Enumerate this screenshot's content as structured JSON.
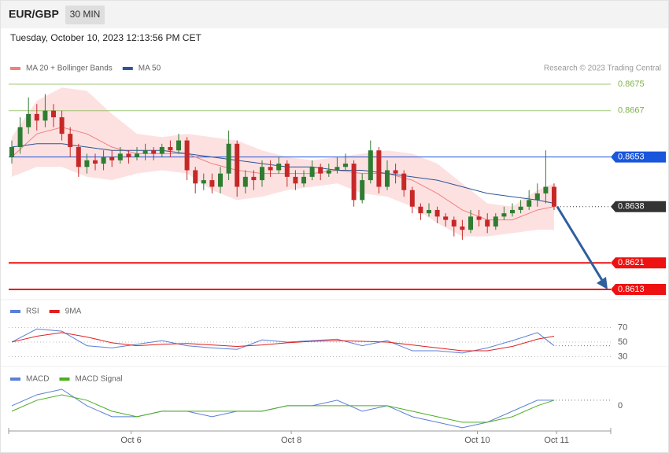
{
  "header": {
    "symbol": "EUR/GBP",
    "interval": "30 MIN",
    "timestamp": "Tuesday, October 10, 2023 12:13:56 PM CET",
    "attribution": "Research © 2023 Trading Central"
  },
  "chart_data": [
    {
      "type": "candlestick",
      "ylim": [
        0.861,
        0.8678
      ],
      "up_color": "#2e7d32",
      "down_color": "#c62828",
      "ohlc": [
        [
          0.8653,
          0.8658,
          0.8651,
          0.8656
        ],
        [
          0.8656,
          0.8665,
          0.8654,
          0.8662
        ],
        [
          0.8662,
          0.8671,
          0.866,
          0.8666
        ],
        [
          0.8666,
          0.8669,
          0.8661,
          0.8664
        ],
        [
          0.8664,
          0.8672,
          0.8662,
          0.8667
        ],
        [
          0.8667,
          0.8669,
          0.8662,
          0.8665
        ],
        [
          0.8665,
          0.8667,
          0.8658,
          0.866
        ],
        [
          0.866,
          0.8662,
          0.8653,
          0.8656
        ],
        [
          0.8656,
          0.8657,
          0.8647,
          0.865
        ],
        [
          0.865,
          0.8654,
          0.8648,
          0.8652
        ],
        [
          0.8652,
          0.8654,
          0.8649,
          0.8651
        ],
        [
          0.8651,
          0.8655,
          0.8649,
          0.8653
        ],
        [
          0.8653,
          0.8655,
          0.865,
          0.8652
        ],
        [
          0.8652,
          0.8656,
          0.8651,
          0.8654
        ],
        [
          0.8654,
          0.8655,
          0.8651,
          0.8653
        ],
        [
          0.8653,
          0.8656,
          0.8652,
          0.8654
        ],
        [
          0.8654,
          0.8657,
          0.8652,
          0.8655
        ],
        [
          0.8655,
          0.8656,
          0.8652,
          0.8654
        ],
        [
          0.8654,
          0.8657,
          0.8653,
          0.8656
        ],
        [
          0.8656,
          0.8658,
          0.8653,
          0.8655
        ],
        [
          0.8655,
          0.866,
          0.8654,
          0.8658
        ],
        [
          0.8658,
          0.8659,
          0.8646,
          0.8649
        ],
        [
          0.8649,
          0.865,
          0.8642,
          0.8645
        ],
        [
          0.8645,
          0.8648,
          0.8643,
          0.8646
        ],
        [
          0.8646,
          0.8648,
          0.8642,
          0.8644
        ],
        [
          0.8644,
          0.865,
          0.8642,
          0.8648
        ],
        [
          0.8648,
          0.8661,
          0.8646,
          0.8657
        ],
        [
          0.8657,
          0.8658,
          0.8641,
          0.8644
        ],
        [
          0.8644,
          0.8649,
          0.8642,
          0.8647
        ],
        [
          0.8647,
          0.8649,
          0.8643,
          0.8646
        ],
        [
          0.8646,
          0.8652,
          0.8644,
          0.865
        ],
        [
          0.865,
          0.8652,
          0.8647,
          0.8649
        ],
        [
          0.8649,
          0.8653,
          0.8648,
          0.8651
        ],
        [
          0.8651,
          0.8652,
          0.8644,
          0.8647
        ],
        [
          0.8647,
          0.8649,
          0.8643,
          0.8645
        ],
        [
          0.8645,
          0.8649,
          0.8644,
          0.8647
        ],
        [
          0.8647,
          0.8652,
          0.8646,
          0.865
        ],
        [
          0.865,
          0.8651,
          0.8646,
          0.8648
        ],
        [
          0.8648,
          0.8651,
          0.8647,
          0.8649
        ],
        [
          0.8649,
          0.8653,
          0.8648,
          0.865
        ],
        [
          0.865,
          0.8654,
          0.8649,
          0.8651
        ],
        [
          0.8651,
          0.8652,
          0.8638,
          0.864
        ],
        [
          0.864,
          0.8648,
          0.8639,
          0.8646
        ],
        [
          0.8646,
          0.8658,
          0.8645,
          0.8655
        ],
        [
          0.8655,
          0.8656,
          0.8642,
          0.8644
        ],
        [
          0.8644,
          0.8652,
          0.8643,
          0.8649
        ],
        [
          0.8649,
          0.8651,
          0.8645,
          0.8648
        ],
        [
          0.8648,
          0.8649,
          0.8641,
          0.8643
        ],
        [
          0.8643,
          0.8644,
          0.8636,
          0.8638
        ],
        [
          0.8638,
          0.8639,
          0.8634,
          0.8636
        ],
        [
          0.8636,
          0.8639,
          0.8635,
          0.8637
        ],
        [
          0.8637,
          0.8638,
          0.8633,
          0.8635
        ],
        [
          0.8635,
          0.8636,
          0.8632,
          0.8634
        ],
        [
          0.8634,
          0.8635,
          0.8629,
          0.8632
        ],
        [
          0.8632,
          0.8634,
          0.8628,
          0.8631
        ],
        [
          0.8631,
          0.8637,
          0.863,
          0.8635
        ],
        [
          0.8635,
          0.8637,
          0.8632,
          0.8634
        ],
        [
          0.8634,
          0.8636,
          0.863,
          0.8632
        ],
        [
          0.8632,
          0.8636,
          0.8631,
          0.8635
        ],
        [
          0.8635,
          0.8638,
          0.8634,
          0.8636
        ],
        [
          0.8636,
          0.8639,
          0.8635,
          0.8637
        ],
        [
          0.8637,
          0.864,
          0.8636,
          0.8638
        ],
        [
          0.8638,
          0.8643,
          0.8637,
          0.864
        ],
        [
          0.864,
          0.8645,
          0.8638,
          0.8642
        ],
        [
          0.8642,
          0.8655,
          0.8639,
          0.8644
        ],
        [
          0.8644,
          0.8645,
          0.8637,
          0.8638
        ]
      ],
      "x": [
        0,
        3,
        6,
        9,
        12,
        15,
        18,
        21,
        24,
        27,
        30,
        33,
        36,
        39,
        42,
        45,
        48,
        51,
        54,
        57,
        60,
        63,
        65
      ],
      "series": [
        {
          "name": "MA 20 + Bollinger Bands",
          "color": "#f08080",
          "band_color": "#fcd9d9",
          "values": [
            0.8653,
            0.866,
            0.8662,
            0.866,
            0.8656,
            0.8654,
            0.8654,
            0.8654,
            0.8651,
            0.8649,
            0.8648,
            0.8648,
            0.8648,
            0.8649,
            0.8648,
            0.8648,
            0.8646,
            0.8642,
            0.8637,
            0.8634,
            0.8634,
            0.8637,
            0.8638
          ],
          "upper": [
            0.8659,
            0.867,
            0.8674,
            0.8673,
            0.8666,
            0.866,
            0.8659,
            0.866,
            0.8659,
            0.8658,
            0.8655,
            0.8653,
            0.8652,
            0.8653,
            0.8654,
            0.8655,
            0.8654,
            0.8651,
            0.8645,
            0.8639,
            0.8638,
            0.8643,
            0.8645
          ],
          "lower": [
            0.8647,
            0.865,
            0.865,
            0.8647,
            0.8646,
            0.8648,
            0.8649,
            0.8648,
            0.8643,
            0.864,
            0.8641,
            0.8643,
            0.8644,
            0.8645,
            0.8642,
            0.8641,
            0.8638,
            0.8633,
            0.8629,
            0.8629,
            0.863,
            0.8631,
            0.8631
          ]
        },
        {
          "name": "MA 50",
          "color": "#2f5597",
          "values": [
            0.8656,
            0.8657,
            0.8657,
            0.8656,
            0.8655,
            0.8655,
            0.8655,
            0.8654,
            0.8653,
            0.8652,
            0.8651,
            0.865,
            0.865,
            0.8649,
            0.8649,
            0.8648,
            0.8647,
            0.8646,
            0.8644,
            0.8642,
            0.8641,
            0.864,
            0.8639
          ]
        }
      ],
      "levels": [
        {
          "value": 0.8675,
          "color": "#7cb342",
          "style": "thin",
          "box": false
        },
        {
          "value": 0.8667,
          "color": "#7cb342",
          "style": "thin",
          "box": false
        },
        {
          "value": 0.8653,
          "color": "#1a56db",
          "style": "thin",
          "box": true
        },
        {
          "value": 0.8638,
          "color": "#333333",
          "style": "dotted",
          "box": true
        },
        {
          "value": 0.8621,
          "color": "#ee1111",
          "style": "thick",
          "box": true
        },
        {
          "value": 0.8613,
          "color": "#ee1111",
          "style": "thick",
          "box": true
        }
      ],
      "xticks": [
        {
          "value": 14.3,
          "label": "Oct 6"
        },
        {
          "value": 33.5,
          "label": "Oct 8"
        },
        {
          "value": 55.8,
          "label": "Oct 10"
        },
        {
          "value": 65.3,
          "label": "Oct 11"
        }
      ]
    },
    {
      "type": "line",
      "ylim": [
        20,
        84
      ],
      "yticks": [
        30,
        50,
        70
      ],
      "grid": true,
      "x": [
        0,
        3,
        6,
        9,
        12,
        15,
        18,
        21,
        24,
        27,
        30,
        33,
        36,
        39,
        42,
        45,
        48,
        51,
        54,
        57,
        60,
        63,
        65
      ],
      "series": [
        {
          "name": "RSI",
          "color": "#5b7fd6",
          "values": [
            50,
            68,
            65,
            45,
            42,
            47,
            52,
            45,
            42,
            40,
            53,
            50,
            52,
            54,
            45,
            52,
            38,
            38,
            35,
            42,
            52,
            63,
            45
          ]
        },
        {
          "name": "9MA",
          "color": "#e02020",
          "values": [
            50,
            58,
            63,
            57,
            49,
            45,
            47,
            48,
            46,
            44,
            46,
            49,
            51,
            52,
            51,
            50,
            46,
            42,
            38,
            38,
            44,
            54,
            58
          ]
        }
      ]
    },
    {
      "type": "line",
      "ylim": [
        -0.00046,
        0.0004
      ],
      "yticks": [
        0
      ],
      "grid": false,
      "x": [
        0,
        3,
        6,
        9,
        12,
        15,
        18,
        21,
        24,
        27,
        30,
        33,
        36,
        39,
        42,
        45,
        48,
        51,
        54,
        57,
        60,
        63,
        65
      ],
      "series": [
        {
          "name": "MACD",
          "color": "#5b7fd6",
          "values": [
            0,
            0.0002,
            0.0003,
            0,
            -0.0002,
            -0.0002,
            -0.0001,
            -0.0001,
            -0.0002,
            -0.0001,
            -0.0001,
            0,
            0,
            0.0001,
            -0.0001,
            0,
            -0.0002,
            -0.0003,
            -0.0004,
            -0.0003,
            -0.0001,
            0.0001,
            0.0001
          ]
        },
        {
          "name": "MACD Signal",
          "color": "#4caf20",
          "values": [
            -0.0001,
            0.0001,
            0.0002,
            0.0001,
            -0.0001,
            -0.0002,
            -0.0001,
            -0.0001,
            -0.0001,
            -0.0001,
            -0.0001,
            0,
            0,
            0,
            0,
            0,
            -0.0001,
            -0.0002,
            -0.0003,
            -0.0003,
            -0.0002,
            0,
            0.0001
          ]
        }
      ]
    }
  ]
}
